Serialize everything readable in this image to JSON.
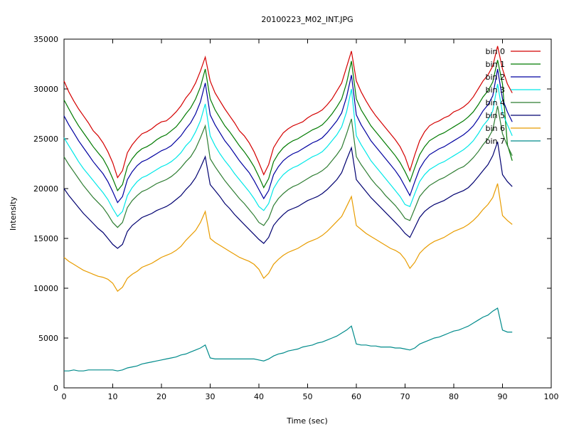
{
  "chart_data": {
    "type": "line",
    "title": "20100223_M02_INT.JPG",
    "xlabel": "Time (sec)",
    "ylabel": "Intensity",
    "xlim": [
      0,
      100
    ],
    "ylim": [
      0,
      35000
    ],
    "xticks": [
      0,
      10,
      20,
      30,
      40,
      50,
      60,
      70,
      80,
      90,
      100
    ],
    "yticks": [
      0,
      5000,
      10000,
      15000,
      20000,
      25000,
      30000,
      35000
    ],
    "grid": false,
    "legend_position": "top-right",
    "x": [
      0,
      1,
      2,
      3,
      4,
      5,
      6,
      7,
      8,
      9,
      10,
      11,
      12,
      13,
      14,
      15,
      16,
      17,
      18,
      19,
      20,
      21,
      22,
      23,
      24,
      25,
      26,
      27,
      28,
      29,
      30,
      31,
      32,
      33,
      34,
      35,
      36,
      37,
      38,
      39,
      40,
      41,
      42,
      43,
      44,
      45,
      46,
      47,
      48,
      49,
      50,
      51,
      52,
      53,
      54,
      55,
      56,
      57,
      58,
      59,
      60,
      61,
      62,
      63,
      64,
      65,
      66,
      67,
      68,
      69,
      70,
      71,
      72,
      73,
      74,
      75,
      76,
      77,
      78,
      79,
      80,
      81,
      82,
      83,
      84,
      85,
      86,
      87,
      88,
      89,
      90,
      91,
      92
    ],
    "series": [
      {
        "name": "bin 0",
        "color": "#d40000",
        "values": [
          30800,
          29700,
          28800,
          28000,
          27300,
          26600,
          25800,
          25300,
          24600,
          23700,
          22600,
          21100,
          21800,
          23600,
          24400,
          25000,
          25500,
          25700,
          26000,
          26400,
          26700,
          26800,
          27200,
          27700,
          28300,
          29100,
          29700,
          30600,
          31800,
          33200,
          30800,
          29600,
          28800,
          28000,
          27300,
          26600,
          25800,
          25300,
          24600,
          23700,
          22600,
          21400,
          22400,
          24100,
          24900,
          25600,
          26000,
          26300,
          26500,
          26700,
          27100,
          27400,
          27600,
          27900,
          28400,
          29000,
          29800,
          30600,
          32200,
          33800,
          30800,
          29700,
          28800,
          28000,
          27300,
          26700,
          26100,
          25500,
          24900,
          24200,
          23200,
          21800,
          23400,
          24800,
          25700,
          26300,
          26600,
          26800,
          27100,
          27300,
          27700,
          27900,
          28200,
          28600,
          29200,
          30000,
          30800,
          31400,
          32300,
          34300,
          32000,
          30500,
          29600
        ]
      },
      {
        "name": "bin 1",
        "color": "#007a00",
        "values": [
          28900,
          28000,
          27100,
          26300,
          25600,
          24900,
          24200,
          23600,
          23000,
          22100,
          21000,
          19800,
          20400,
          22200,
          23000,
          23600,
          24000,
          24200,
          24500,
          24900,
          25200,
          25400,
          25800,
          26200,
          26800,
          27500,
          28100,
          29000,
          30200,
          32000,
          29000,
          27900,
          27100,
          26300,
          25700,
          25000,
          24300,
          23700,
          23000,
          22200,
          21200,
          20100,
          21000,
          22700,
          23500,
          24100,
          24500,
          24800,
          25000,
          25300,
          25600,
          25900,
          26100,
          26400,
          26900,
          27500,
          28200,
          29000,
          30600,
          32800,
          29000,
          27900,
          27100,
          26300,
          25700,
          25100,
          24500,
          23900,
          23300,
          22600,
          21700,
          20700,
          22100,
          23400,
          24200,
          24800,
          25100,
          25400,
          25600,
          25900,
          26200,
          26500,
          26800,
          27200,
          27700,
          28400,
          29200,
          29800,
          30700,
          32900,
          30500,
          24400,
          22800
        ]
      },
      {
        "name": "bin 2",
        "color": "#0000a0",
        "values": [
          27300,
          26400,
          25600,
          24800,
          24100,
          23400,
          22700,
          22100,
          21500,
          20700,
          19700,
          18600,
          19200,
          20900,
          21700,
          22300,
          22700,
          22900,
          23200,
          23500,
          23800,
          24000,
          24300,
          24800,
          25300,
          26000,
          26600,
          27500,
          28700,
          30600,
          27400,
          26400,
          25600,
          24800,
          24200,
          23500,
          22800,
          22200,
          21600,
          20800,
          19900,
          19000,
          19800,
          21400,
          22200,
          22800,
          23200,
          23500,
          23700,
          24000,
          24300,
          24600,
          24800,
          25100,
          25600,
          26200,
          26800,
          27600,
          29200,
          31400,
          27400,
          26400,
          25600,
          24800,
          24200,
          23600,
          23000,
          22400,
          21800,
          21100,
          20200,
          19300,
          20700,
          22000,
          22800,
          23400,
          23700,
          24000,
          24200,
          24500,
          24800,
          25100,
          25400,
          25800,
          26300,
          27000,
          27800,
          28400,
          29300,
          32000,
          29000,
          27700,
          26700
        ]
      },
      {
        "name": "bin 3",
        "color": "#00e8e8",
        "values": [
          25100,
          24300,
          23500,
          22700,
          22000,
          21400,
          20800,
          20200,
          19600,
          18900,
          18000,
          17200,
          17700,
          19300,
          20100,
          20700,
          21100,
          21300,
          21600,
          21900,
          22200,
          22400,
          22700,
          23100,
          23600,
          24300,
          24800,
          25700,
          26800,
          28500,
          25300,
          24300,
          23500,
          22800,
          22200,
          21500,
          20900,
          20300,
          19700,
          19000,
          18200,
          17800,
          18500,
          20000,
          20800,
          21400,
          21800,
          22100,
          22300,
          22600,
          22900,
          23200,
          23400,
          23700,
          24200,
          24800,
          25400,
          26200,
          27700,
          30000,
          25300,
          24400,
          23600,
          22800,
          22200,
          21600,
          21000,
          20400,
          19800,
          19200,
          18400,
          18200,
          19500,
          20700,
          21400,
          21900,
          22200,
          22500,
          22700,
          23000,
          23300,
          23600,
          23900,
          24300,
          24800,
          25500,
          26300,
          26900,
          27800,
          30500,
          27600,
          26400,
          25300
        ]
      },
      {
        "name": "bin 4",
        "color": "#2e7d32",
        "values": [
          23200,
          22400,
          21700,
          21000,
          20300,
          19700,
          19100,
          18600,
          18100,
          17400,
          16600,
          16100,
          16600,
          18100,
          18800,
          19300,
          19700,
          19900,
          20200,
          20500,
          20700,
          20900,
          21200,
          21600,
          22100,
          22700,
          23200,
          24000,
          25100,
          26300,
          23000,
          22200,
          21500,
          20800,
          20200,
          19600,
          19000,
          18500,
          17900,
          17300,
          16600,
          16300,
          17000,
          18300,
          19000,
          19500,
          19900,
          20200,
          20400,
          20700,
          21000,
          21300,
          21500,
          21800,
          22200,
          22800,
          23400,
          24100,
          25500,
          27000,
          23200,
          22400,
          21700,
          21000,
          20400,
          19900,
          19300,
          18800,
          18300,
          17700,
          17000,
          16800,
          18000,
          19200,
          19800,
          20300,
          20600,
          20900,
          21100,
          21400,
          21700,
          22000,
          22200,
          22600,
          23100,
          23700,
          24400,
          25000,
          25900,
          28300,
          25500,
          24300,
          23300
        ]
      },
      {
        "name": "bin 5",
        "color": "#000070",
        "values": [
          20000,
          19300,
          18700,
          18100,
          17500,
          17000,
          16500,
          16000,
          15600,
          15000,
          14400,
          14000,
          14400,
          15700,
          16300,
          16700,
          17100,
          17300,
          17500,
          17800,
          18000,
          18200,
          18500,
          18900,
          19300,
          19900,
          20400,
          21100,
          22100,
          23200,
          20400,
          19800,
          19200,
          18500,
          18000,
          17400,
          16900,
          16400,
          15900,
          15400,
          14900,
          14500,
          15100,
          16300,
          16900,
          17400,
          17800,
          18000,
          18200,
          18500,
          18800,
          19000,
          19200,
          19500,
          19900,
          20400,
          20900,
          21600,
          22900,
          24100,
          20900,
          20300,
          19700,
          19100,
          18600,
          18100,
          17600,
          17100,
          16600,
          16100,
          15500,
          15100,
          16100,
          17100,
          17700,
          18100,
          18400,
          18600,
          18800,
          19100,
          19400,
          19600,
          19800,
          20100,
          20600,
          21200,
          21800,
          22400,
          23300,
          24700,
          21400,
          20700,
          20200
        ]
      },
      {
        "name": "bin 6",
        "color": "#e89c00",
        "values": [
          13100,
          12700,
          12400,
          12100,
          11800,
          11600,
          11400,
          11200,
          11100,
          10900,
          10500,
          9700,
          10100,
          11000,
          11400,
          11700,
          12100,
          12300,
          12500,
          12800,
          13100,
          13300,
          13500,
          13800,
          14200,
          14800,
          15300,
          15800,
          16600,
          17700,
          15000,
          14600,
          14300,
          14000,
          13700,
          13400,
          13100,
          12900,
          12700,
          12400,
          11900,
          11000,
          11500,
          12400,
          12900,
          13300,
          13600,
          13800,
          14000,
          14300,
          14600,
          14800,
          15000,
          15300,
          15700,
          16200,
          16700,
          17200,
          18200,
          19200,
          16300,
          15900,
          15500,
          15200,
          14900,
          14600,
          14300,
          14000,
          13800,
          13500,
          12900,
          12000,
          12600,
          13500,
          14000,
          14400,
          14700,
          14900,
          15100,
          15400,
          15700,
          15900,
          16100,
          16400,
          16800,
          17300,
          17900,
          18400,
          19100,
          20500,
          17300,
          16800,
          16400
        ]
      },
      {
        "name": "bin 7",
        "color": "#008b8b",
        "values": [
          1700,
          1700,
          1800,
          1700,
          1700,
          1800,
          1800,
          1800,
          1800,
          1800,
          1800,
          1700,
          1800,
          2000,
          2100,
          2200,
          2400,
          2500,
          2600,
          2700,
          2800,
          2900,
          3000,
          3100,
          3300,
          3400,
          3600,
          3800,
          4000,
          4300,
          3000,
          2900,
          2900,
          2900,
          2900,
          2900,
          2900,
          2900,
          2900,
          2900,
          2800,
          2700,
          2900,
          3200,
          3400,
          3500,
          3700,
          3800,
          3900,
          4100,
          4200,
          4300,
          4500,
          4600,
          4800,
          5000,
          5200,
          5500,
          5800,
          6200,
          4400,
          4300,
          4300,
          4200,
          4200,
          4100,
          4100,
          4100,
          4000,
          4000,
          3900,
          3800,
          4000,
          4400,
          4600,
          4800,
          5000,
          5100,
          5300,
          5500,
          5700,
          5800,
          6000,
          6200,
          6500,
          6800,
          7100,
          7300,
          7700,
          8000,
          5800,
          5600,
          5600
        ]
      }
    ]
  }
}
